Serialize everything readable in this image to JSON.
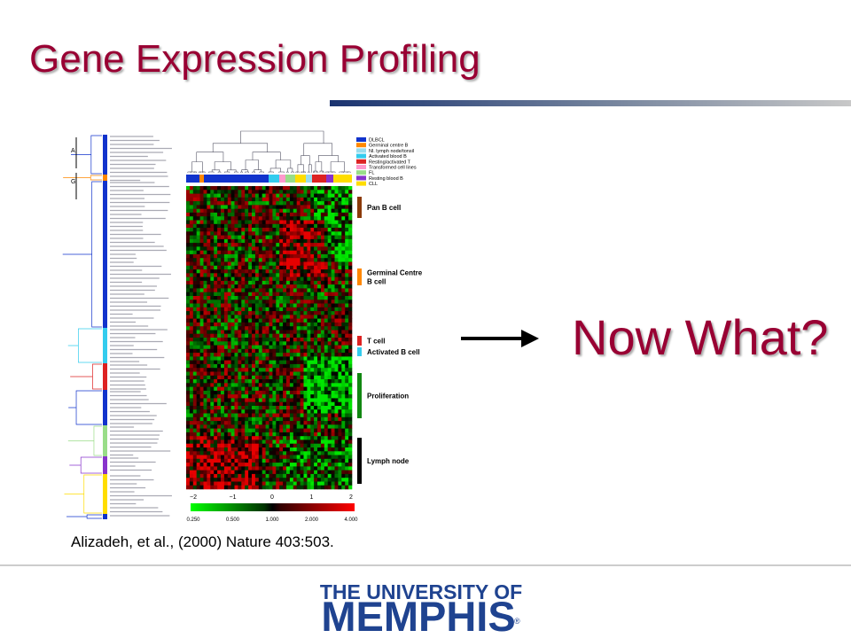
{
  "header": {
    "title": "Gene Expression Profiling"
  },
  "figure": {
    "cluster_labels": [
      "A",
      "G"
    ],
    "legend": [
      {
        "label": "DLBCL",
        "color": "#1133cc"
      },
      {
        "label": "Germinal centre B",
        "color": "#ff8800"
      },
      {
        "label": "Nl. lymph node/tonsil",
        "color": "#99ddee"
      },
      {
        "label": "Activated blood B",
        "color": "#33ccee"
      },
      {
        "label": "Resting/activated T",
        "color": "#dd2222"
      },
      {
        "label": "Transformed cell lines",
        "color": "#ff99cc"
      },
      {
        "label": "FL",
        "color": "#99dd88"
      },
      {
        "label": "Resting blood B",
        "color": "#8833cc"
      },
      {
        "label": "CLL",
        "color": "#ffdd00"
      }
    ],
    "signatures": [
      {
        "lines": [
          "Pan B cell"
        ],
        "color": "#8b3a0a"
      },
      {
        "lines": [
          "Germinal Centre",
          "B cell"
        ],
        "color": "#ff8800"
      },
      {
        "lines": [
          "T cell"
        ],
        "color": "#dd2222"
      },
      {
        "lines": [
          "Activated B cell"
        ],
        "color": "#33ccee"
      },
      {
        "lines": [
          "Proliferation"
        ],
        "color": "#118811"
      },
      {
        "lines": [
          "Lymph node"
        ],
        "color": "#000000"
      }
    ],
    "scale_log2": [
      "−2",
      "−1",
      "0",
      "1",
      "2"
    ],
    "scale_ratio": [
      "0.250",
      "0.500",
      "1.000",
      "2.000",
      "4.000"
    ]
  },
  "citation": "Alizadeh, et al., (2000) Nature 403:503.",
  "callout": "Now What?",
  "footer": {
    "logo_line1": "THE UNIVERSITY OF",
    "logo_line2": "MEMPHIS",
    "logo_mark": "®"
  }
}
